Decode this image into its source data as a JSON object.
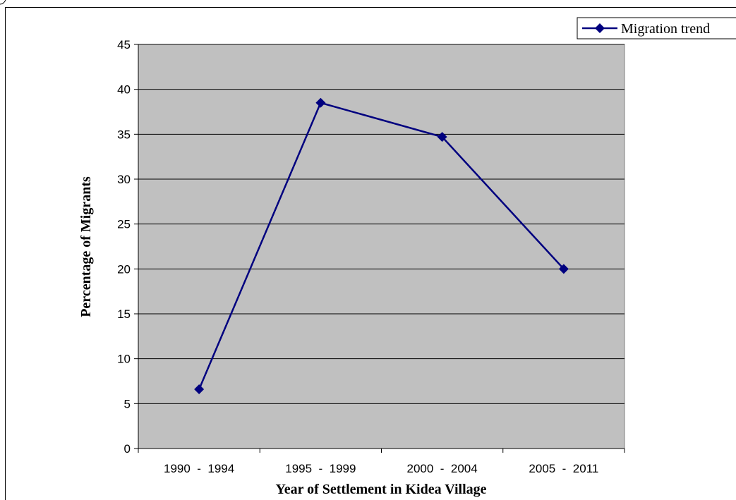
{
  "chart_data": {
    "type": "line",
    "categories": [
      "1990  -  1994",
      "1995  -  1999",
      "2000  -  2004",
      "2005  -  2011"
    ],
    "series": [
      {
        "name": "Migration trend",
        "values": [
          6.6,
          38.5,
          34.7,
          20.0
        ],
        "color": "#00007f",
        "marker": "diamond"
      }
    ],
    "xlabel": "Year of Settlement in Kidea Village",
    "ylabel": "Percentage of Migrants",
    "ylim": [
      0,
      45
    ],
    "yticks": [
      "0",
      "5",
      "10",
      "15",
      "20",
      "25",
      "30",
      "35",
      "40",
      "45"
    ],
    "grid": true,
    "plot_background": "#c0c0c0",
    "legend_position": "top-right"
  }
}
